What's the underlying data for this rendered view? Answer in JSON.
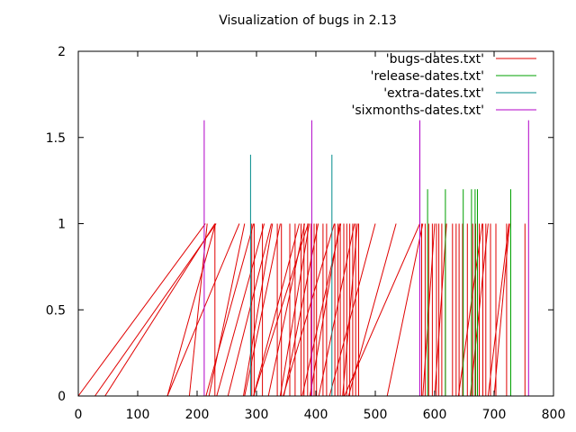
{
  "chart_data": {
    "type": "line",
    "title": "Visualization of bugs in 2.13",
    "xlabel": "",
    "ylabel": "",
    "xlim": [
      0,
      800
    ],
    "ylim": [
      0,
      2
    ],
    "grid": false,
    "legend_position": "top-right",
    "x_ticks": [
      "0",
      "100",
      "200",
      "300",
      "400",
      "500",
      "600",
      "700",
      "800"
    ],
    "y_ticks": [
      "0",
      "0.5",
      "1",
      "1.5",
      "2"
    ],
    "series": [
      {
        "name": "'bugs-dates.txt'",
        "color": "#e00000",
        "segments": [
          [
            [
              0,
              0
            ],
            [
              214,
              1
            ]
          ],
          [
            [
              28,
              0
            ],
            [
              232,
              1
            ]
          ],
          [
            [
              45,
              0
            ],
            [
              230,
              1
            ]
          ],
          [
            [
              150,
              0
            ],
            [
              231,
              1
            ]
          ],
          [
            [
              150,
              0
            ],
            [
              271,
              1
            ]
          ],
          [
            [
              187,
              0
            ],
            [
              217,
              1
            ]
          ],
          [
            [
              215,
              0
            ],
            [
              295,
              1
            ]
          ],
          [
            [
              220,
              0
            ],
            [
              280,
              1
            ]
          ],
          [
            [
              233,
              0
            ],
            [
              313,
              1
            ]
          ],
          [
            [
              252,
              0
            ],
            [
              325,
              1
            ]
          ],
          [
            [
              278,
              0
            ],
            [
              327,
              1
            ]
          ],
          [
            [
              280,
              0
            ],
            [
              340,
              1
            ]
          ],
          [
            [
              295,
              0
            ],
            [
              372,
              1
            ]
          ],
          [
            [
              295,
              0
            ],
            [
              387,
              1
            ]
          ],
          [
            [
              320,
              0
            ],
            [
              381,
              1
            ]
          ],
          [
            [
              340,
              0
            ],
            [
              389,
              1
            ]
          ],
          [
            [
              345,
              0
            ],
            [
              431,
              1
            ]
          ],
          [
            [
              346,
              0
            ],
            [
              404,
              1
            ]
          ],
          [
            [
              377,
              0
            ],
            [
              442,
              1
            ]
          ],
          [
            [
              390,
              0
            ],
            [
              440,
              1
            ]
          ],
          [
            [
              405,
              0
            ],
            [
              465,
              1
            ]
          ],
          [
            [
              423,
              0
            ],
            [
              500,
              1
            ]
          ],
          [
            [
              445,
              0
            ],
            [
              470,
              1
            ]
          ],
          [
            [
              455,
              0
            ],
            [
              535,
              1
            ]
          ],
          [
            [
              448,
              0
            ],
            [
              575,
              1
            ]
          ],
          [
            [
              520,
              0
            ],
            [
              580,
              1
            ]
          ],
          [
            [
              580,
              0
            ],
            [
              600,
              1
            ]
          ],
          [
            [
              600,
              0
            ],
            [
              620,
              1
            ]
          ],
          [
            [
              640,
              0
            ],
            [
              680,
              1
            ]
          ],
          [
            [
              660,
              0
            ],
            [
              690,
              1
            ]
          ],
          [
            [
              690,
              0
            ],
            [
              725,
              1
            ]
          ],
          [
            [
              700,
              0
            ],
            [
              726,
              1
            ]
          ],
          [
            [
              230,
              0
            ],
            [
              230,
              1
            ]
          ],
          [
            [
              292,
              0
            ],
            [
              292,
              1
            ]
          ],
          [
            [
              296,
              0
            ],
            [
              296,
              1
            ]
          ],
          [
            [
              310,
              0
            ],
            [
              310,
              1
            ]
          ],
          [
            [
              335,
              0
            ],
            [
              335,
              1
            ]
          ],
          [
            [
              342,
              0
            ],
            [
              342,
              1
            ]
          ],
          [
            [
              356,
              0
            ],
            [
              356,
              1
            ]
          ],
          [
            [
              365,
              0
            ],
            [
              365,
              1
            ]
          ],
          [
            [
              375,
              0
            ],
            [
              375,
              1
            ]
          ],
          [
            [
              380,
              0
            ],
            [
              380,
              1
            ]
          ],
          [
            [
              386,
              0
            ],
            [
              386,
              1
            ]
          ],
          [
            [
              392,
              0
            ],
            [
              392,
              1
            ]
          ],
          [
            [
              397,
              0
            ],
            [
              397,
              1
            ]
          ],
          [
            [
              401,
              0
            ],
            [
              401,
              1
            ]
          ],
          [
            [
              412,
              0
            ],
            [
              412,
              1
            ]
          ],
          [
            [
              418,
              0
            ],
            [
              418,
              1
            ]
          ],
          [
            [
              432,
              0
            ],
            [
              432,
              1
            ]
          ],
          [
            [
              437,
              0
            ],
            [
              437,
              1
            ]
          ],
          [
            [
              441,
              0
            ],
            [
              441,
              1
            ]
          ],
          [
            [
              447,
              0
            ],
            [
              447,
              1
            ]
          ],
          [
            [
              452,
              0
            ],
            [
              452,
              1
            ]
          ],
          [
            [
              457,
              0
            ],
            [
              457,
              1
            ]
          ],
          [
            [
              462,
              0
            ],
            [
              462,
              1
            ]
          ],
          [
            [
              467,
              0
            ],
            [
              467,
              1
            ]
          ],
          [
            [
              472,
              0
            ],
            [
              472,
              1
            ]
          ],
          [
            [
              578,
              0
            ],
            [
              578,
              1
            ]
          ],
          [
            [
              584,
              0
            ],
            [
              584,
              1
            ]
          ],
          [
            [
              590,
              0
            ],
            [
              590,
              1
            ]
          ],
          [
            [
              596,
              0
            ],
            [
              596,
              1
            ]
          ],
          [
            [
              603,
              0
            ],
            [
              603,
              1
            ]
          ],
          [
            [
              607,
              0
            ],
            [
              607,
              1
            ]
          ],
          [
            [
              612,
              0
            ],
            [
              612,
              1
            ]
          ],
          [
            [
              618,
              0
            ],
            [
              618,
              1
            ]
          ],
          [
            [
              630,
              0
            ],
            [
              630,
              1
            ]
          ],
          [
            [
              636,
              0
            ],
            [
              636,
              1
            ]
          ],
          [
            [
              641,
              0
            ],
            [
              641,
              1
            ]
          ],
          [
            [
              647,
              0
            ],
            [
              647,
              1
            ]
          ],
          [
            [
              655,
              0
            ],
            [
              655,
              1
            ]
          ],
          [
            [
              664,
              0
            ],
            [
              664,
              1
            ]
          ],
          [
            [
              669,
              0
            ],
            [
              669,
              1
            ]
          ],
          [
            [
              675,
              0
            ],
            [
              675,
              1
            ]
          ],
          [
            [
              681,
              0
            ],
            [
              681,
              1
            ]
          ],
          [
            [
              686,
              0
            ],
            [
              686,
              1
            ]
          ],
          [
            [
              694,
              0
            ],
            [
              694,
              1
            ]
          ],
          [
            [
              703,
              0
            ],
            [
              703,
              1
            ]
          ],
          [
            [
              721,
              0
            ],
            [
              721,
              1
            ]
          ],
          [
            [
              752,
              0
            ],
            [
              752,
              1
            ]
          ]
        ]
      },
      {
        "name": "'release-dates.txt'",
        "color": "#00a000",
        "segments": [
          [
            [
              588,
              0
            ],
            [
              588,
              1.2
            ]
          ],
          [
            [
              618,
              0
            ],
            [
              618,
              1.2
            ]
          ],
          [
            [
              648,
              0
            ],
            [
              648,
              1.2
            ]
          ],
          [
            [
              662,
              0
            ],
            [
              662,
              1.2
            ]
          ],
          [
            [
              668,
              0
            ],
            [
              668,
              1.2
            ]
          ],
          [
            [
              672,
              0
            ],
            [
              672,
              1.2
            ]
          ],
          [
            [
              728,
              0
            ],
            [
              728,
              1.2
            ]
          ]
        ]
      },
      {
        "name": "'extra-dates.txt'",
        "color": "#008b8b",
        "segments": [
          [
            [
              290,
              0
            ],
            [
              290,
              1.4
            ]
          ],
          [
            [
              427,
              0
            ],
            [
              427,
              1.4
            ]
          ]
        ]
      },
      {
        "name": "'sixmonths-dates.txt'",
        "color": "#b000c8",
        "segments": [
          [
            [
              212,
              0
            ],
            [
              212,
              1.6
            ]
          ],
          [
            [
              393,
              0
            ],
            [
              393,
              1.6
            ]
          ],
          [
            [
              575,
              0
            ],
            [
              575,
              1.6
            ]
          ],
          [
            [
              758,
              0
            ],
            [
              758,
              1.6
            ]
          ]
        ]
      }
    ]
  }
}
